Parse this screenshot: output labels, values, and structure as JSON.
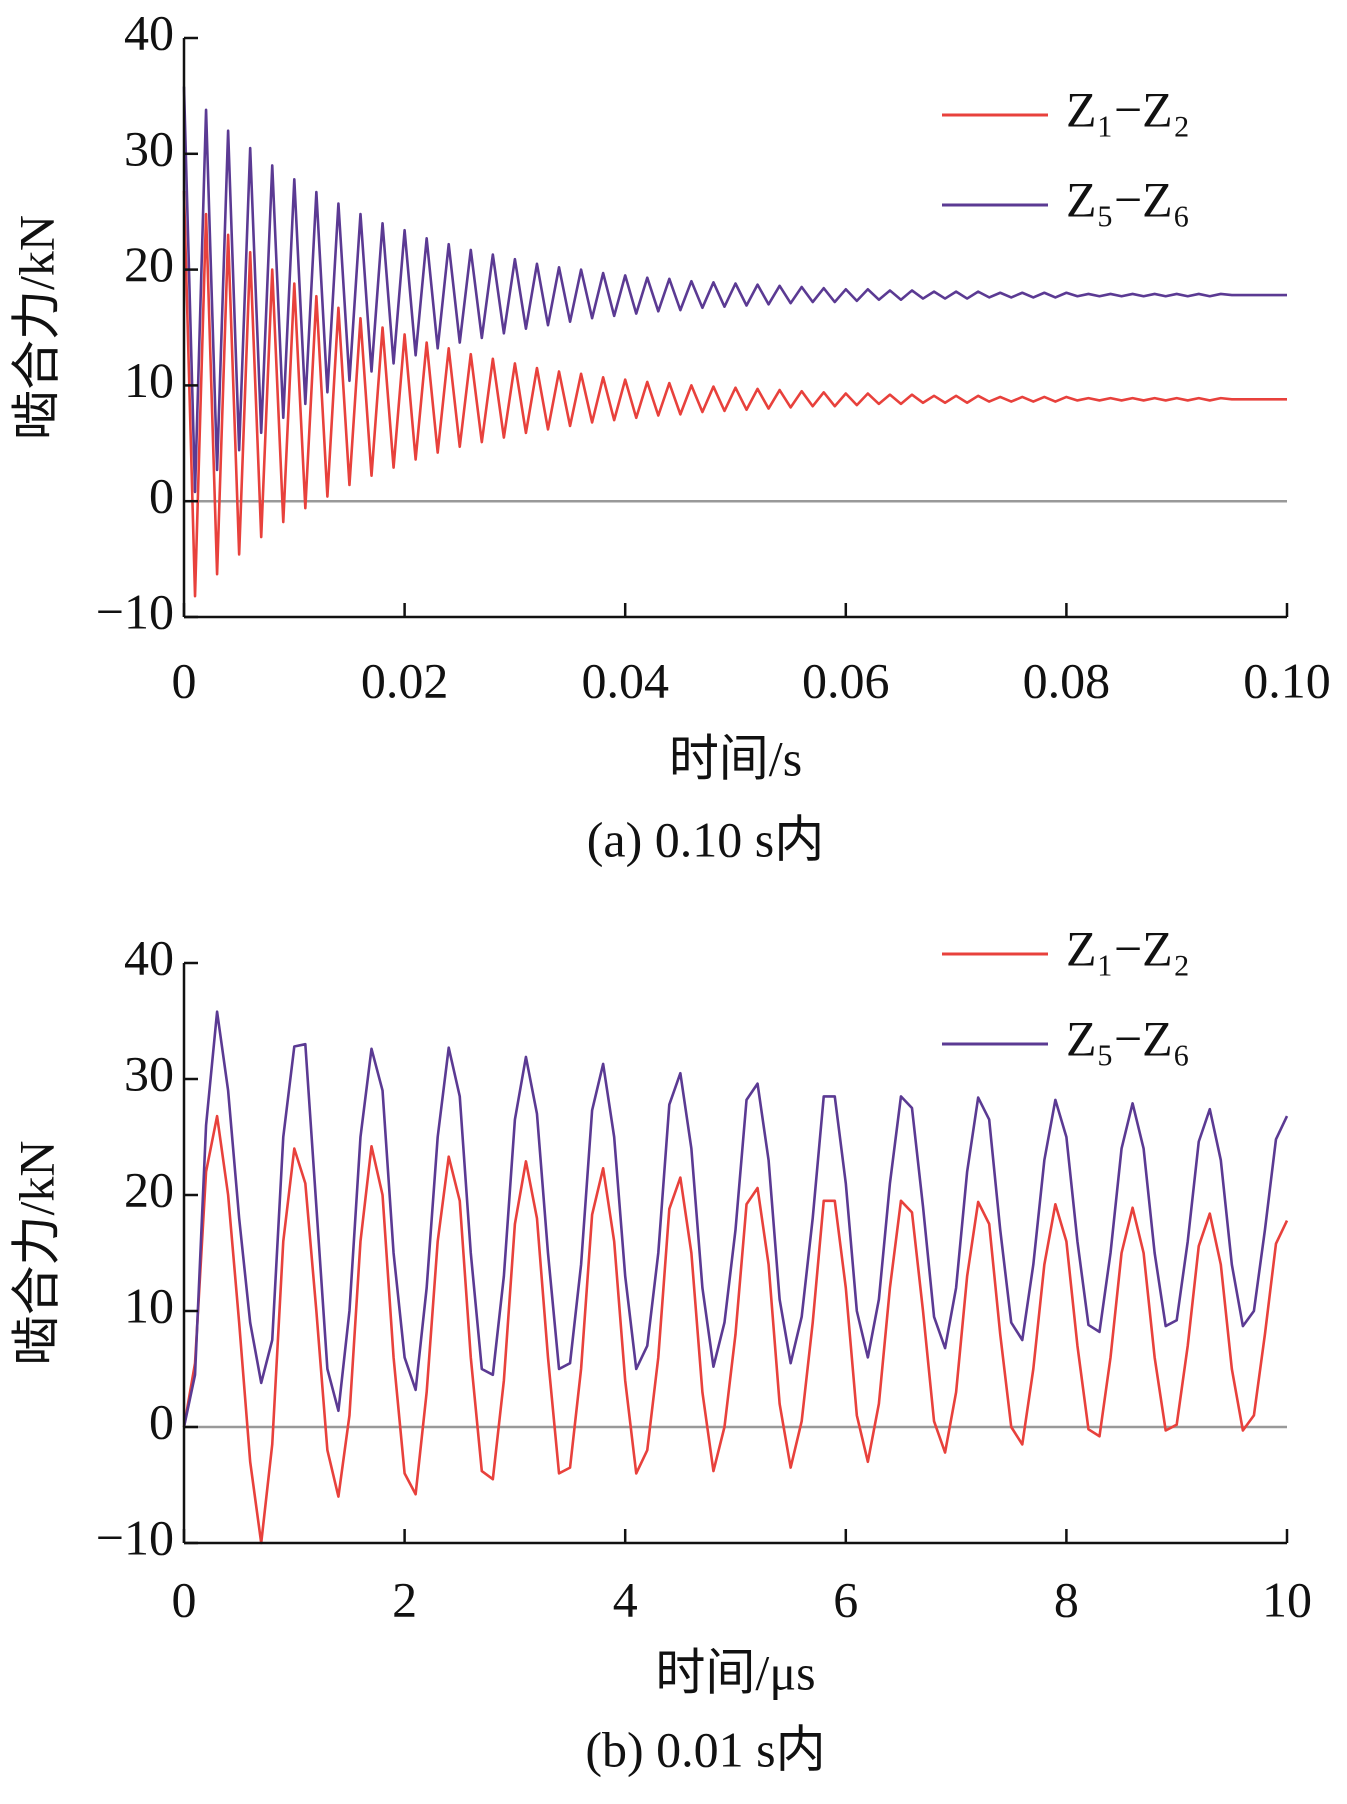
{
  "chart_data": [
    {
      "type": "line",
      "caption": "(a)  0.10 s内",
      "xlabel": "时间/s",
      "ylabel": "啮合力/kN",
      "xlim": [
        0,
        0.1
      ],
      "ylim": [
        -10,
        40
      ],
      "xticks": [
        0,
        0.02,
        0.04,
        0.06,
        0.08,
        {
          "value": 0.1,
          "label": "0.10"
        }
      ],
      "yticks": [
        {
          "value": -10,
          "label": "−10"
        },
        0,
        10,
        20,
        30,
        40
      ],
      "zero_line": true,
      "legend": "upper right",
      "x": [
        0,
        0.001,
        0.002,
        0.003,
        0.004,
        0.005,
        0.006,
        0.007,
        0.008,
        0.009,
        0.01,
        0.011,
        0.012,
        0.013,
        0.014,
        0.015,
        0.016,
        0.017,
        0.018,
        0.019,
        0.02,
        0.021,
        0.022,
        0.023,
        0.024,
        0.025,
        0.026,
        0.027,
        0.028,
        0.029,
        0.03,
        0.031,
        0.032,
        0.033,
        0.034,
        0.035,
        0.036,
        0.037,
        0.038,
        0.039,
        0.04,
        0.041,
        0.042,
        0.043,
        0.044,
        0.045,
        0.046,
        0.047,
        0.048,
        0.049,
        0.05,
        0.051,
        0.052,
        0.053,
        0.054,
        0.055,
        0.056,
        0.057,
        0.058,
        0.059,
        0.06,
        0.061,
        0.062,
        0.063,
        0.064,
        0.065,
        0.066,
        0.067,
        0.068,
        0.069,
        0.07,
        0.071,
        0.072,
        0.073,
        0.074,
        0.075,
        0.076,
        0.077,
        0.078,
        0.079,
        0.08,
        0.081,
        0.082,
        0.083,
        0.084,
        0.085,
        0.086,
        0.087,
        0.088,
        0.089,
        0.09,
        0.091,
        0.092,
        0.093,
        0.094,
        0.095,
        0.096,
        0.097,
        0.098,
        0.099,
        0.1
      ],
      "series": [
        {
          "name": "Z₁−Z₂",
          "color": "#e8413c",
          "values": [
            26.8,
            -8.2,
            24.8,
            -6.3,
            23.0,
            -4.6,
            21.5,
            -3.1,
            20.0,
            -1.8,
            18.8,
            -0.6,
            17.7,
            0.4,
            16.7,
            1.4,
            15.8,
            2.2,
            15.0,
            2.9,
            14.4,
            3.6,
            13.7,
            4.2,
            13.2,
            4.7,
            12.7,
            5.1,
            12.3,
            5.5,
            11.9,
            5.9,
            11.5,
            6.2,
            11.2,
            6.5,
            11.0,
            6.8,
            10.7,
            7.0,
            10.5,
            7.2,
            10.3,
            7.4,
            10.2,
            7.5,
            10.0,
            7.7,
            9.9,
            7.8,
            9.8,
            7.9,
            9.7,
            8.0,
            9.6,
            8.1,
            9.5,
            8.2,
            9.4,
            8.2,
            9.3,
            8.3,
            9.3,
            8.4,
            9.2,
            8.4,
            9.2,
            8.5,
            9.1,
            8.5,
            9.1,
            8.5,
            9.1,
            8.6,
            9.0,
            8.6,
            9.0,
            8.6,
            9.0,
            8.6,
            9.0,
            8.7,
            8.9,
            8.7,
            8.9,
            8.7,
            8.9,
            8.7,
            8.9,
            8.7,
            8.9,
            8.7,
            8.9,
            8.7,
            8.9,
            8.8,
            8.8,
            8.8,
            8.8,
            8.8,
            8.8
          ]
        },
        {
          "name": "Z₅−Z₆",
          "color": "#5b3a93",
          "values": [
            35.8,
            0.8,
            33.8,
            2.7,
            32.0,
            4.4,
            30.5,
            5.9,
            29.0,
            7.2,
            27.8,
            8.4,
            26.7,
            9.4,
            25.7,
            10.4,
            24.8,
            11.2,
            24.0,
            11.9,
            23.4,
            12.6,
            22.7,
            13.2,
            22.2,
            13.7,
            21.7,
            14.1,
            21.3,
            14.5,
            20.9,
            14.9,
            20.5,
            15.2,
            20.2,
            15.5,
            20.0,
            15.8,
            19.7,
            16.0,
            19.5,
            16.2,
            19.3,
            16.4,
            19.2,
            16.5,
            19.0,
            16.7,
            18.9,
            16.8,
            18.8,
            16.9,
            18.7,
            17.0,
            18.6,
            17.1,
            18.5,
            17.2,
            18.4,
            17.2,
            18.3,
            17.3,
            18.3,
            17.4,
            18.2,
            17.4,
            18.2,
            17.5,
            18.1,
            17.5,
            18.1,
            17.5,
            18.1,
            17.6,
            18.0,
            17.6,
            18.0,
            17.6,
            18.0,
            17.6,
            18.0,
            17.7,
            17.9,
            17.7,
            17.9,
            17.7,
            17.9,
            17.7,
            17.9,
            17.7,
            17.9,
            17.7,
            17.9,
            17.7,
            17.9,
            17.8,
            17.8,
            17.8,
            17.8,
            17.8,
            17.8
          ]
        }
      ]
    },
    {
      "type": "line",
      "caption": "(b)  0.01 s内",
      "xlabel": "时间/μs",
      "ylabel": "啮合力/kN",
      "xlim": [
        0,
        10
      ],
      "ylim": [
        -10,
        40
      ],
      "xticks": [
        0,
        2,
        4,
        6,
        8,
        10
      ],
      "yticks": [
        {
          "value": -10,
          "label": "−10"
        },
        0,
        10,
        20,
        30,
        40
      ],
      "zero_line": true,
      "legend": "upper right",
      "x": [
        0,
        0.1,
        0.2,
        0.3,
        0.4,
        0.5,
        0.6,
        0.7,
        0.8,
        0.9,
        1,
        1.1,
        1.2,
        1.3,
        1.4,
        1.5,
        1.6,
        1.7,
        1.8,
        1.9,
        2,
        2.1,
        2.2,
        2.3,
        2.4,
        2.5,
        2.6,
        2.7,
        2.8,
        2.9,
        3,
        3.1,
        3.2,
        3.3,
        3.4,
        3.5,
        3.6,
        3.7,
        3.8,
        3.9,
        4,
        4.1,
        4.2,
        4.3,
        4.4,
        4.5,
        4.6,
        4.7,
        4.8,
        4.9,
        5,
        5.1,
        5.2,
        5.3,
        5.4,
        5.5,
        5.6,
        5.7,
        5.8,
        5.9,
        6,
        6.1,
        6.2,
        6.3,
        6.4,
        6.5,
        6.6,
        6.7,
        6.8,
        6.9,
        7,
        7.1,
        7.2,
        7.3,
        7.4,
        7.5,
        7.6,
        7.7,
        7.8,
        7.9,
        8,
        8.1,
        8.2,
        8.3,
        8.4,
        8.5,
        8.6,
        8.7,
        8.8,
        8.9,
        9,
        9.1,
        9.2,
        9.3,
        9.4,
        9.5,
        9.6,
        9.7,
        9.8,
        9.9,
        10
      ],
      "series": [
        {
          "name": "Z₁−Z₂",
          "color": "#e8413c",
          "values": [
            0,
            5.5,
            22,
            26.8,
            20,
            9,
            -3,
            -10,
            -1.5,
            16,
            24,
            21,
            10,
            -2,
            -6,
            1,
            16,
            24.2,
            20,
            6,
            -4,
            -5.8,
            3,
            16,
            23.3,
            19.5,
            6,
            -3.8,
            -4.5,
            4,
            17.5,
            22.9,
            18,
            6,
            -4,
            -3.5,
            5,
            18.3,
            22.3,
            16,
            4,
            -4,
            -2,
            6,
            18.8,
            21.5,
            15,
            3,
            -3.8,
            0,
            8,
            19.2,
            20.6,
            14,
            2,
            -3.5,
            0.5,
            9,
            19.5,
            19.5,
            12,
            1,
            -3,
            2,
            12,
            19.5,
            18.5,
            10,
            0.5,
            -2.2,
            3,
            13,
            19.4,
            17.5,
            8,
            0,
            -1.5,
            5,
            14,
            19.2,
            16,
            7,
            -0.2,
            -0.8,
            6,
            15,
            18.9,
            15,
            6,
            -0.3,
            0.2,
            7,
            15.6,
            18.4,
            14,
            5,
            -0.3,
            1,
            8,
            15.8,
            17.8
          ]
        },
        {
          "name": "Z₅−Z₆",
          "color": "#5b3a93",
          "values": [
            0,
            4.5,
            26,
            35.8,
            29,
            18,
            9,
            3.8,
            7.5,
            25,
            32.8,
            33,
            19,
            5,
            1.4,
            10,
            25,
            32.6,
            29,
            15,
            6,
            3.2,
            12,
            25,
            32.7,
            28.5,
            15,
            5,
            4.5,
            13,
            26.5,
            31.9,
            27,
            15,
            5,
            5.5,
            14,
            27.3,
            31.3,
            25,
            13,
            5,
            7,
            15,
            27.8,
            30.5,
            24,
            12,
            5.2,
            9,
            17,
            28.2,
            29.6,
            23,
            11,
            5.5,
            9.5,
            18,
            28.5,
            28.5,
            21,
            10,
            6,
            11,
            21,
            28.5,
            27.5,
            19,
            9.5,
            6.8,
            12,
            22,
            28.4,
            26.5,
            17,
            9,
            7.5,
            14,
            23,
            28.2,
            25,
            16,
            8.8,
            8.2,
            15,
            24,
            27.9,
            24,
            15,
            8.7,
            9.2,
            16,
            24.6,
            27.4,
            23,
            14,
            8.7,
            10,
            17,
            24.8,
            26.8
          ]
        }
      ]
    }
  ]
}
